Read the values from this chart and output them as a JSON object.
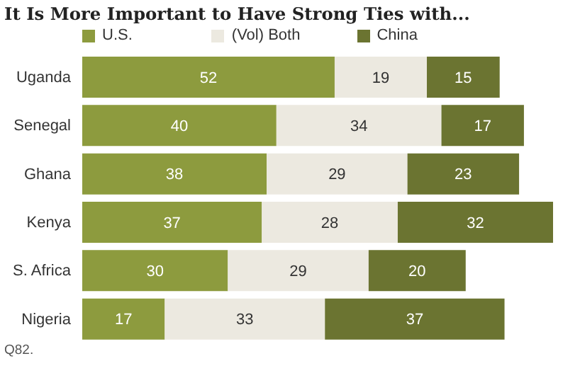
{
  "chart_data": {
    "type": "bar",
    "orientation": "horizontal",
    "stacked": true,
    "title": "It Is More Important to Have Strong Ties with...",
    "categories": [
      "Uganda",
      "Senegal",
      "Ghana",
      "Kenya",
      "S. Africa",
      "Nigeria"
    ],
    "series": [
      {
        "name": "U.S.",
        "color": "#8d9b3e",
        "values": [
          52,
          40,
          38,
          37,
          30,
          17
        ]
      },
      {
        "name": "(Vol) Both",
        "color": "#ece9e0",
        "values": [
          19,
          34,
          29,
          28,
          29,
          33
        ]
      },
      {
        "name": "China",
        "color": "#6b7431",
        "values": [
          15,
          17,
          23,
          32,
          20,
          37
        ]
      }
    ],
    "data_labels": true,
    "legend": "top",
    "tick_labels": "y",
    "annotations": [
      "Q82."
    ]
  }
}
